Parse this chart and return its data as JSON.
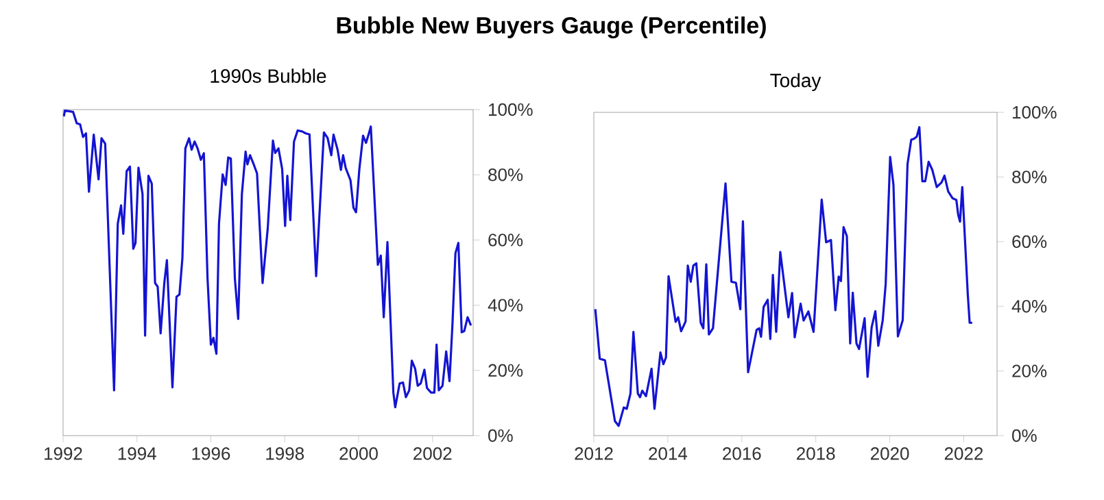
{
  "chart_data": [
    {
      "type": "line",
      "title": "Bubble New Buyers Gauge (Percentile)",
      "subtitle": "1990s Bubble",
      "xlim": [
        1992,
        2003.1
      ],
      "xticks": [
        1992,
        1994,
        1996,
        1998,
        2000,
        2002
      ],
      "ylim": [
        0,
        100
      ],
      "yticks": [
        {
          "value": 0,
          "label": "0%"
        },
        {
          "value": 20,
          "label": "20%"
        },
        {
          "value": 40,
          "label": "40%"
        },
        {
          "value": 60,
          "label": "60%"
        },
        {
          "value": 80,
          "label": "80%"
        },
        {
          "value": 100,
          "label": "100%"
        }
      ],
      "grid": false,
      "series": [
        {
          "color": "#1414d2",
          "x": [
            1992.02,
            1992.05,
            1992.27,
            1992.37,
            1992.46,
            1992.54,
            1992.62,
            1992.7,
            1992.83,
            1992.96,
            1993.04,
            1993.14,
            1993.38,
            1993.48,
            1993.57,
            1993.63,
            1993.72,
            1993.81,
            1993.9,
            1993.96,
            1994.04,
            1994.15,
            1994.22,
            1994.31,
            1994.4,
            1994.49,
            1994.56,
            1994.64,
            1994.74,
            1994.81,
            1994.96,
            1995.07,
            1995.15,
            1995.23,
            1995.31,
            1995.41,
            1995.48,
            1995.56,
            1995.64,
            1995.73,
            1995.81,
            1995.91,
            1996.0,
            1996.07,
            1996.15,
            1996.22,
            1996.32,
            1996.4,
            1996.47,
            1996.54,
            1996.65,
            1996.74,
            1996.84,
            1996.94,
            1996.99,
            1997.06,
            1997.16,
            1997.25,
            1997.4,
            1997.54,
            1997.68,
            1997.74,
            1997.83,
            1997.93,
            1998.01,
            1998.07,
            1998.15,
            1998.25,
            1998.35,
            1998.47,
            1998.57,
            1998.67,
            1998.85,
            1999.06,
            1999.16,
            1999.26,
            1999.32,
            1999.43,
            1999.52,
            1999.58,
            1999.65,
            1999.78,
            1999.86,
            1999.93,
            2000.02,
            2000.12,
            2000.2,
            2000.26,
            2000.33,
            2000.52,
            2000.6,
            2000.68,
            2000.78,
            2000.94,
            2000.99,
            2001.11,
            2001.2,
            2001.28,
            2001.37,
            2001.44,
            2001.53,
            2001.6,
            2001.68,
            2001.78,
            2001.85,
            2001.96,
            2002.05,
            2002.11,
            2002.17,
            2002.27,
            2002.37,
            2002.46,
            2002.54,
            2002.62,
            2002.7,
            2002.79,
            2002.86,
            2002.95,
            2003.04
          ],
          "values": [
            97.9,
            99.7,
            99.3,
            95.8,
            95.5,
            91.6,
            92.7,
            74.8,
            92.3,
            78.6,
            91.2,
            89.5,
            13.9,
            65,
            70.6,
            61.9,
            81.1,
            82.5,
            57.3,
            59.1,
            82.2,
            74.1,
            30.7,
            79.7,
            77.3,
            46.8,
            45.7,
            31.4,
            46.8,
            53.8,
            14.8,
            42.6,
            43.3,
            54.5,
            88.1,
            91.2,
            87.7,
            90.2,
            88.1,
            84.6,
            86.6,
            48.2,
            27.9,
            30,
            25.1,
            65,
            80.1,
            76.9,
            85.3,
            85,
            48.2,
            35.8,
            74.1,
            87.1,
            83.2,
            86,
            83.2,
            80.4,
            46.8,
            63.6,
            90.5,
            86.7,
            88.1,
            81.8,
            64.3,
            79.7,
            66.1,
            90.2,
            93.6,
            93.3,
            92.7,
            92.4,
            48.9,
            93,
            91.3,
            86,
            92.3,
            87.7,
            81.5,
            86,
            82.1,
            78.3,
            69.9,
            68.5,
            81.8,
            92,
            89.8,
            92,
            94.8,
            52.4,
            55.2,
            36.3,
            59.4,
            13.2,
            8.7,
            16,
            16.3,
            11.8,
            13.9,
            23,
            20.5,
            15.3,
            16,
            20.2,
            14.6,
            13.2,
            13.2,
            27.9,
            13.9,
            15.3,
            25.8,
            16.7,
            34.2,
            55.9,
            59.1,
            31.7,
            32.1,
            36.3,
            33.8
          ]
        }
      ]
    },
    {
      "type": "line",
      "title": "Today",
      "xlim": [
        2012,
        2022.9
      ],
      "xticks": [
        2012,
        2014,
        2016,
        2018,
        2020,
        2022
      ],
      "ylim": [
        0,
        100
      ],
      "yticks": [
        {
          "value": 0,
          "label": "0%"
        },
        {
          "value": 20,
          "label": "20%"
        },
        {
          "value": 40,
          "label": "40%"
        },
        {
          "value": 60,
          "label": "60%"
        },
        {
          "value": 80,
          "label": "80%"
        },
        {
          "value": 100,
          "label": "100%"
        }
      ],
      "grid": false,
      "series": [
        {
          "color": "#1414d2",
          "x": [
            2012.04,
            2012.16,
            2012.3,
            2012.57,
            2012.67,
            2012.81,
            2012.89,
            2012.99,
            2013.07,
            2013.19,
            2013.25,
            2013.31,
            2013.41,
            2013.56,
            2013.64,
            2013.8,
            2013.88,
            2013.95,
            2014.02,
            2014.21,
            2014.28,
            2014.36,
            2014.48,
            2014.54,
            2014.62,
            2014.69,
            2014.77,
            2014.89,
            2014.96,
            2015.04,
            2015.11,
            2015.22,
            2015.56,
            2015.72,
            2015.84,
            2015.96,
            2016.03,
            2016.17,
            2016.4,
            2016.47,
            2016.52,
            2016.59,
            2016.7,
            2016.77,
            2016.84,
            2016.93,
            2017.04,
            2017.26,
            2017.36,
            2017.43,
            2017.59,
            2017.67,
            2017.8,
            2017.94,
            2018.16,
            2018.28,
            2018.41,
            2018.53,
            2018.62,
            2018.68,
            2018.75,
            2018.84,
            2018.93,
            2019.0,
            2019.1,
            2019.17,
            2019.32,
            2019.4,
            2019.51,
            2019.61,
            2019.69,
            2019.81,
            2019.89,
            2020.01,
            2020.1,
            2020.22,
            2020.35,
            2020.48,
            2020.58,
            2020.65,
            2020.73,
            2020.8,
            2020.88,
            2020.96,
            2021.05,
            2021.15,
            2021.27,
            2021.4,
            2021.48,
            2021.58,
            2021.7,
            2021.8,
            2021.85,
            2021.9,
            2021.96,
            2022.11,
            2022.16,
            2022.23
          ],
          "values": [
            39.1,
            23.8,
            23.3,
            4.5,
            3,
            8.7,
            8.3,
            13,
            32.1,
            13,
            11.9,
            13.9,
            12.2,
            20.7,
            8.3,
            25.7,
            22.1,
            24.2,
            49.3,
            35.2,
            36.6,
            32.3,
            35.3,
            52.6,
            47.6,
            52.6,
            53.3,
            34.9,
            33.2,
            53,
            31.3,
            33.2,
            78,
            47.6,
            47.3,
            39.1,
            66.3,
            19.6,
            32.7,
            33.2,
            30.6,
            39.8,
            42,
            29.9,
            49.7,
            32.1,
            56.8,
            36.6,
            44.1,
            30.4,
            40.8,
            35.6,
            38.4,
            32.1,
            73,
            59.8,
            60.5,
            38.8,
            49.2,
            47.8,
            64.5,
            61.7,
            28.5,
            44.2,
            28.5,
            26.8,
            36.3,
            18.2,
            33.5,
            38.5,
            27.8,
            35.7,
            47,
            86.2,
            77.6,
            30.7,
            35.7,
            84,
            91.5,
            91.8,
            92.5,
            95.4,
            78.7,
            78.7,
            84.7,
            82.2,
            76.9,
            78.3,
            80.4,
            75.5,
            73.4,
            72.9,
            68.3,
            66.2,
            76.9,
            43.5,
            34.9,
            34.9
          ]
        }
      ]
    }
  ]
}
